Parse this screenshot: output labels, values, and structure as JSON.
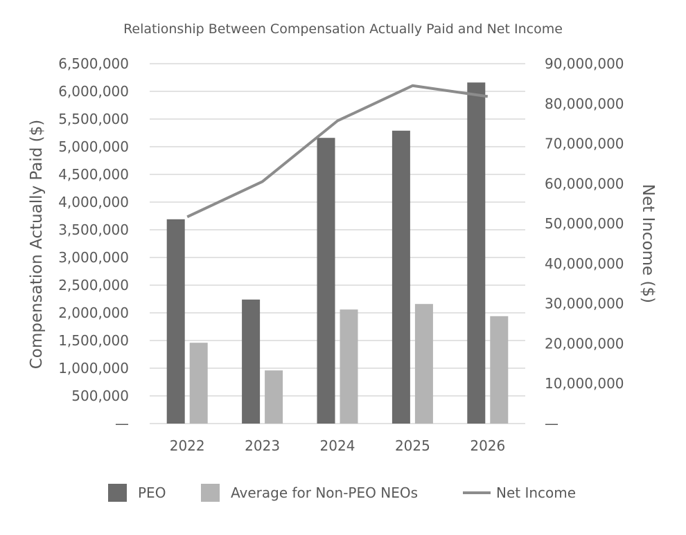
{
  "chart_data": {
    "type": "bar",
    "title": "Relationship Between Compensation Actually Paid and Net Income",
    "categories": [
      "2022",
      "2023",
      "2024",
      "2025",
      "2026"
    ],
    "series": [
      {
        "name": "PEO",
        "type": "bar",
        "axis": "left",
        "color": "#6b6b6b",
        "values": [
          3690000,
          2240000,
          5160000,
          5290000,
          6160000
        ]
      },
      {
        "name": "Average for Non-PEO NEOs",
        "type": "bar",
        "axis": "left",
        "color": "#b4b4b4",
        "values": [
          1460000,
          960000,
          2060000,
          2160000,
          1940000
        ]
      },
      {
        "name": "Net Income",
        "type": "line",
        "axis": "right",
        "color": "#8c8c8c",
        "values": [
          51700000,
          60500000,
          75700000,
          84500000,
          81800000
        ]
      }
    ],
    "ylabel": "Compensation Actually Paid ($)",
    "y2label": "Net Income ($)",
    "ylim": [
      0,
      6500000
    ],
    "y2lim": [
      0,
      90000000
    ],
    "yticks": [
      {
        "value": 0,
        "label": "—"
      },
      {
        "value": 500000,
        "label": "500,000"
      },
      {
        "value": 1000000,
        "label": "1,000,000"
      },
      {
        "value": 1500000,
        "label": "1,500,000"
      },
      {
        "value": 2000000,
        "label": "2,000,000"
      },
      {
        "value": 2500000,
        "label": "2,500,000"
      },
      {
        "value": 3000000,
        "label": "3,000,000"
      },
      {
        "value": 3500000,
        "label": "3,500,000"
      },
      {
        "value": 4000000,
        "label": "4,000,000"
      },
      {
        "value": 4500000,
        "label": "4,500,000"
      },
      {
        "value": 5000000,
        "label": "5,000,000"
      },
      {
        "value": 5500000,
        "label": "5,500,000"
      },
      {
        "value": 6000000,
        "label": "6,000,000"
      },
      {
        "value": 6500000,
        "label": "6,500,000"
      }
    ],
    "y2ticks": [
      {
        "value": 0,
        "label": "—"
      },
      {
        "value": 10000000,
        "label": "10,000,000"
      },
      {
        "value": 20000000,
        "label": "20,000,000"
      },
      {
        "value": 30000000,
        "label": "30,000,000"
      },
      {
        "value": 40000000,
        "label": "40,000,000"
      },
      {
        "value": 50000000,
        "label": "50,000,000"
      },
      {
        "value": 60000000,
        "label": "60,000,000"
      },
      {
        "value": 70000000,
        "label": "70,000,000"
      },
      {
        "value": 80000000,
        "label": "80,000,000"
      },
      {
        "value": 90000000,
        "label": "90,000,000"
      }
    ],
    "grid": true,
    "legend_position": "bottom",
    "colors": {
      "gridline": "#d9d9d9",
      "text": "#595959"
    }
  }
}
